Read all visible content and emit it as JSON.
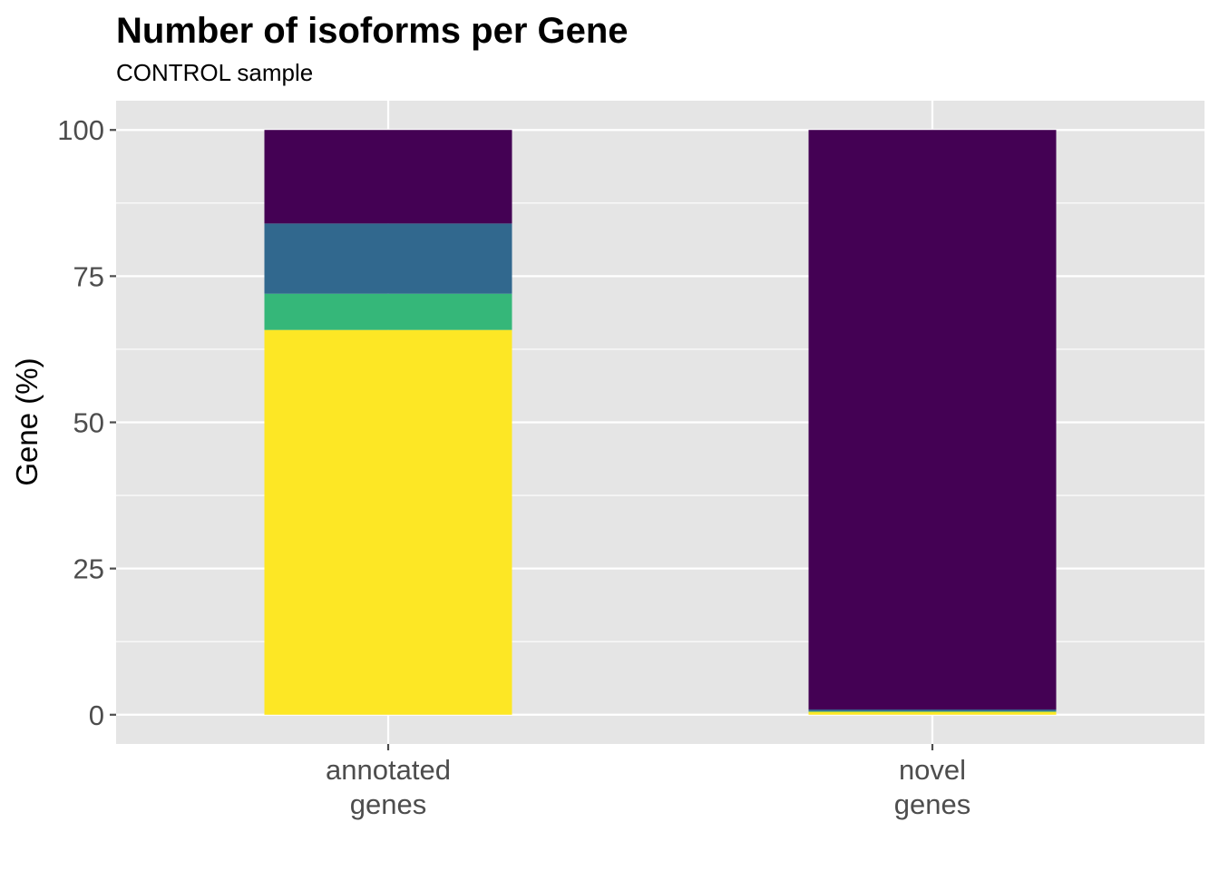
{
  "chart_data": {
    "type": "bar",
    "stacked": true,
    "title": "Number of isoforms per Gene",
    "subtitle": "CONTROL sample",
    "xlabel": "",
    "ylabel": "Gene (%)",
    "ylim": [
      -5,
      105
    ],
    "yticks": [
      0,
      25,
      50,
      75,
      100
    ],
    "ytick_labels": [
      "0",
      "25",
      "50",
      "75",
      "100"
    ],
    "grid": true,
    "legend": "none",
    "categories": [
      [
        "annotated",
        "genes"
      ],
      [
        "novel",
        "genes"
      ]
    ],
    "series": [
      {
        "color": "#FDE725",
        "values": [
          65.8,
          0.5
        ]
      },
      {
        "color": "#35B779",
        "values": [
          6.2,
          0.1
        ]
      },
      {
        "color": "#31688E",
        "values": [
          12.0,
          0.3
        ]
      },
      {
        "color": "#440154",
        "values": [
          16.0,
          99.1
        ]
      }
    ],
    "colors": {
      "panel": "#E5E5E5",
      "grid": "#FFFFFF",
      "tick": "#4D4D4D"
    }
  }
}
